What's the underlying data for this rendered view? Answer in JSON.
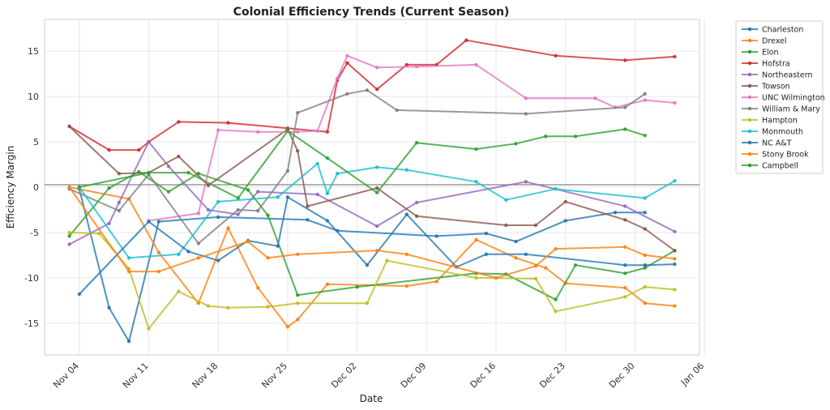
{
  "chart_data": {
    "type": "line",
    "title": "Colonial Efficiency Trends (Current Season)",
    "xlabel": "Date",
    "ylabel": "Efficiency Margin",
    "xlim": [
      -3.5,
      62.5
    ],
    "ylim": [
      -18.5,
      18.5
    ],
    "date_origin": "Nov 04 = day 0",
    "x_ticks": [
      {
        "label": "Nov 04",
        "value": 0
      },
      {
        "label": "Nov 11",
        "value": 7
      },
      {
        "label": "Nov 18",
        "value": 14
      },
      {
        "label": "Nov 25",
        "value": 21
      },
      {
        "label": "Dec 02",
        "value": 28
      },
      {
        "label": "Dec 09",
        "value": 35
      },
      {
        "label": "Dec 16",
        "value": 42
      },
      {
        "label": "Dec 23",
        "value": 49
      },
      {
        "label": "Dec 30",
        "value": 56
      },
      {
        "label": "Jan 06",
        "value": 63
      }
    ],
    "y_ticks": [
      -15,
      -10,
      -5,
      0,
      5,
      10,
      15
    ],
    "grid": true,
    "legend_position": "outside-right",
    "series": [
      {
        "name": "Charleston",
        "color": "#1f77b4",
        "points": [
          [
            0,
            -0.2
          ],
          [
            3,
            -13.3
          ],
          [
            5,
            -17
          ],
          [
            8,
            -3.8
          ],
          [
            14,
            -3.3
          ],
          [
            23,
            -3.6
          ],
          [
            26,
            -4.8
          ],
          [
            36,
            -5.4
          ],
          [
            41,
            -5.1
          ],
          [
            44,
            -6
          ],
          [
            49,
            -3.7
          ],
          [
            54,
            -2.8
          ],
          [
            57,
            -2.8
          ]
        ]
      },
      {
        "name": "Drexel",
        "color": "#ff7f0e",
        "points": [
          [
            -1,
            0
          ],
          [
            5,
            -1.3
          ],
          [
            8,
            -7.2
          ],
          [
            12,
            -12.8
          ],
          [
            15,
            -4.5
          ],
          [
            18,
            -11.1
          ],
          [
            21,
            -15.4
          ],
          [
            22,
            -14.6
          ],
          [
            25,
            -10.7
          ],
          [
            33,
            -10.9
          ],
          [
            36,
            -10.4
          ],
          [
            40,
            -5.8
          ],
          [
            44,
            -7.8
          ],
          [
            47,
            -8.9
          ],
          [
            49,
            -10.6
          ],
          [
            55,
            -11.1
          ],
          [
            57,
            -12.8
          ],
          [
            60,
            -13.1
          ]
        ]
      },
      {
        "name": "Elon",
        "color": "#2ca02c",
        "points": [
          [
            -1,
            -5.4
          ],
          [
            3,
            -0.1
          ],
          [
            6,
            1.7
          ],
          [
            9,
            -0.5
          ],
          [
            12,
            1.5
          ],
          [
            17,
            -0.3
          ],
          [
            19,
            -3.1
          ],
          [
            22,
            -11.9
          ],
          [
            28,
            -11
          ],
          [
            40,
            -9.5
          ],
          [
            43,
            -9.6
          ],
          [
            48,
            -12.4
          ],
          [
            50,
            -8.6
          ],
          [
            55,
            -9.5
          ],
          [
            57,
            -8.9
          ],
          [
            60,
            -7
          ]
        ]
      },
      {
        "name": "Hofstra",
        "color": "#d62728",
        "points": [
          [
            -1,
            6.7
          ],
          [
            3,
            4.1
          ],
          [
            6,
            4.1
          ],
          [
            7,
            5
          ],
          [
            10,
            7.2
          ],
          [
            15,
            7.1
          ],
          [
            21,
            6.5
          ],
          [
            25,
            6.1
          ],
          [
            26,
            11.8
          ],
          [
            27,
            13.7
          ],
          [
            30,
            10.8
          ],
          [
            33,
            13.5
          ],
          [
            36,
            13.5
          ],
          [
            39,
            16.2
          ],
          [
            48,
            14.5
          ],
          [
            55,
            14
          ],
          [
            60,
            14.4
          ]
        ]
      },
      {
        "name": "Northeastern",
        "color": "#9467bd",
        "points": [
          [
            -1,
            -6.3
          ],
          [
            3,
            -4
          ],
          [
            4,
            -1.7
          ],
          [
            7,
            5
          ],
          [
            9,
            2.3
          ],
          [
            13,
            -2.5
          ],
          [
            16,
            -3
          ],
          [
            18,
            -0.5
          ],
          [
            24,
            -0.8
          ],
          [
            30,
            -4.3
          ],
          [
            34,
            -1.7
          ],
          [
            45,
            0.6
          ],
          [
            55,
            -2.1
          ],
          [
            60,
            -4.9
          ]
        ]
      },
      {
        "name": "Towson",
        "color": "#8c564b",
        "points": [
          [
            -1,
            6.7
          ],
          [
            4,
            1.5
          ],
          [
            7,
            1.6
          ],
          [
            10,
            3.4
          ],
          [
            13,
            0.2
          ],
          [
            21,
            6.4
          ],
          [
            22,
            4
          ],
          [
            23,
            -2.1
          ],
          [
            30,
            -0.1
          ],
          [
            34,
            -3.2
          ],
          [
            43,
            -4.2
          ],
          [
            46,
            -4.2
          ],
          [
            49,
            -1.6
          ],
          [
            55,
            -3.6
          ],
          [
            57,
            -4.6
          ],
          [
            60,
            -7
          ]
        ]
      },
      {
        "name": "UNC Wilmington",
        "color": "#e377c2",
        "points": [
          [
            7,
            -3.7
          ],
          [
            12,
            -2.9
          ],
          [
            14,
            6.3
          ],
          [
            18,
            6.1
          ],
          [
            22,
            6.1
          ],
          [
            24,
            6.2
          ],
          [
            26,
            12
          ],
          [
            27,
            14.5
          ],
          [
            30,
            13.2
          ],
          [
            34,
            13.3
          ],
          [
            40,
            13.5
          ],
          [
            45,
            9.8
          ],
          [
            52,
            9.8
          ],
          [
            54,
            8.8
          ],
          [
            57,
            9.6
          ],
          [
            60,
            9.3
          ]
        ]
      },
      {
        "name": "William & Mary",
        "color": "#7f7f7f",
        "points": [
          [
            -1,
            -0.2
          ],
          [
            4,
            -2.6
          ],
          [
            7,
            1.4
          ],
          [
            12,
            -6.2
          ],
          [
            16,
            -2.5
          ],
          [
            18,
            -2.6
          ],
          [
            21,
            1.8
          ],
          [
            22,
            8.2
          ],
          [
            27,
            10.3
          ],
          [
            29,
            10.7
          ],
          [
            32,
            8.5
          ],
          [
            45,
            8.1
          ],
          [
            55,
            8.8
          ],
          [
            57,
            10.3
          ]
        ]
      },
      {
        "name": "Hampton",
        "color": "#bcbd22",
        "points": [
          [
            -1,
            -5
          ],
          [
            2,
            -5.1
          ],
          [
            5,
            -9
          ],
          [
            7,
            -15.6
          ],
          [
            10,
            -11.5
          ],
          [
            13,
            -13.1
          ],
          [
            15,
            -13.3
          ],
          [
            19,
            -13.2
          ],
          [
            22,
            -12.8
          ],
          [
            29,
            -12.8
          ],
          [
            31,
            -8.1
          ],
          [
            40,
            -10
          ],
          [
            46,
            -10.1
          ],
          [
            48,
            -13.7
          ],
          [
            55,
            -12.1
          ],
          [
            57,
            -11
          ],
          [
            60,
            -11.3
          ]
        ]
      },
      {
        "name": "Monmouth",
        "color": "#17becf",
        "points": [
          [
            0,
            0
          ],
          [
            5,
            -7.8
          ],
          [
            10,
            -7.4
          ],
          [
            14,
            -1.6
          ],
          [
            20,
            -1.1
          ],
          [
            24,
            2.6
          ],
          [
            25,
            -0.7
          ],
          [
            26,
            1.5
          ],
          [
            30,
            2.2
          ],
          [
            33,
            1.9
          ],
          [
            40,
            0.6
          ],
          [
            43,
            -1.4
          ],
          [
            48,
            -0.2
          ],
          [
            57,
            -1.2
          ],
          [
            60,
            0.7
          ]
        ]
      },
      {
        "name": "NC A&T",
        "color": "#1f77b4",
        "points": [
          [
            0,
            -11.8
          ],
          [
            7,
            -3.8
          ],
          [
            11,
            -7.1
          ],
          [
            14,
            -8.1
          ],
          [
            17,
            -5.9
          ],
          [
            20,
            -6.5
          ],
          [
            21,
            -1.1
          ],
          [
            25,
            -3.7
          ],
          [
            29,
            -8.6
          ],
          [
            33,
            -3
          ],
          [
            38,
            -8.8
          ],
          [
            41,
            -7.4
          ],
          [
            45,
            -7.4
          ],
          [
            55,
            -8.6
          ],
          [
            57,
            -8.6
          ],
          [
            60,
            -8.5
          ]
        ]
      },
      {
        "name": "Stony Brook",
        "color": "#ff7f0e",
        "points": [
          [
            -1,
            0
          ],
          [
            5,
            -9.3
          ],
          [
            8,
            -9.3
          ],
          [
            12,
            -7.8
          ],
          [
            17,
            -6
          ],
          [
            19,
            -7.8
          ],
          [
            22,
            -7.4
          ],
          [
            30,
            -7
          ],
          [
            33,
            -7.4
          ],
          [
            42,
            -10
          ],
          [
            46,
            -8.7
          ],
          [
            48,
            -6.8
          ],
          [
            55,
            -6.6
          ],
          [
            57,
            -7.5
          ],
          [
            60,
            -7.9
          ]
        ]
      },
      {
        "name": "Campbell",
        "color": "#2ca02c",
        "points": [
          [
            0,
            0
          ],
          [
            7,
            1.6
          ],
          [
            11,
            1.6
          ],
          [
            16,
            -1.2
          ],
          [
            21,
            6.2
          ],
          [
            25,
            3.2
          ],
          [
            30,
            -0.6
          ],
          [
            34,
            4.9
          ],
          [
            40,
            4.2
          ],
          [
            44,
            4.8
          ],
          [
            47,
            5.6
          ],
          [
            50,
            5.6
          ],
          [
            55,
            6.4
          ],
          [
            57,
            5.7
          ]
        ]
      }
    ]
  }
}
